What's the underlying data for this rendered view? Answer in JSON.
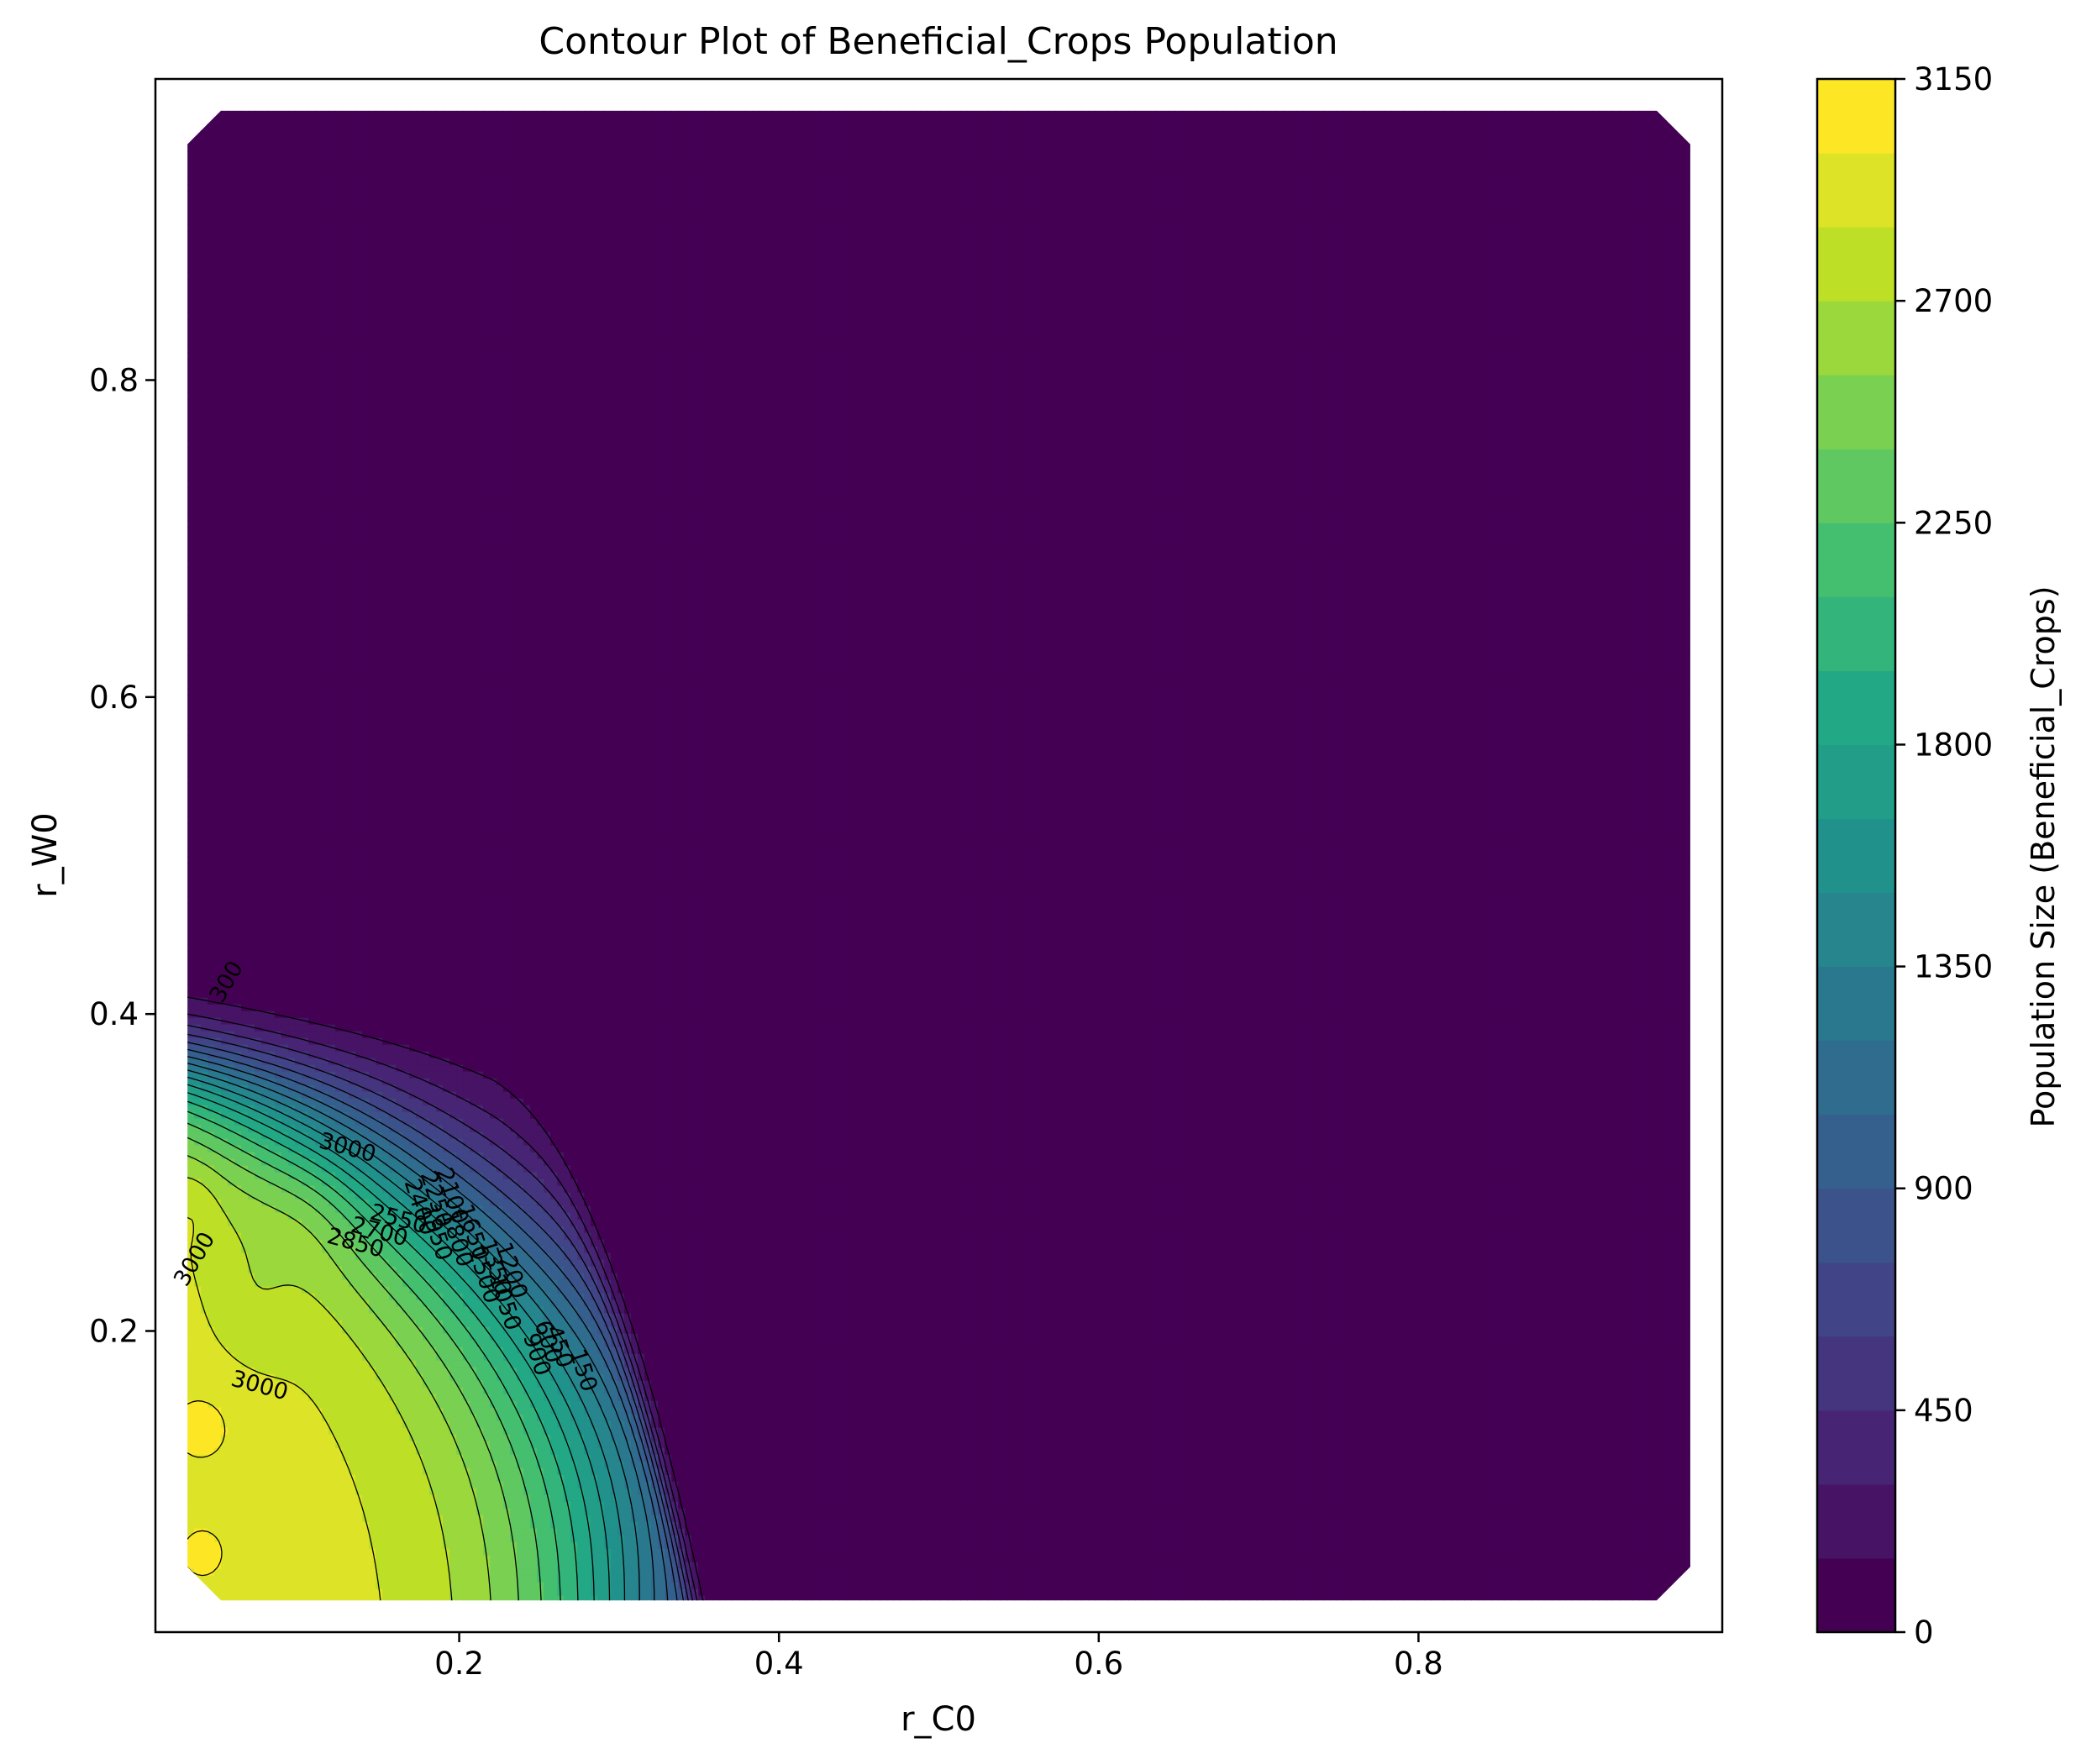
{
  "chart_data": {
    "type": "contour",
    "title": "Contour Plot of Beneficial_Crops Population",
    "xlabel": "r_C0",
    "ylabel": "r_W0",
    "xlim": [
      0.01,
      0.99
    ],
    "ylim": [
      0.01,
      0.99
    ],
    "x_ticks": [
      0.2,
      0.4,
      0.6,
      0.8
    ],
    "y_ticks": [
      0.2,
      0.4,
      0.6,
      0.8
    ],
    "x_tick_labels": [
      "0.2",
      "0.4",
      "0.6",
      "0.8"
    ],
    "y_tick_labels": [
      "0.2",
      "0.4",
      "0.6",
      "0.8"
    ],
    "data_extent": {
      "x": [
        0.03,
        0.97
      ],
      "y": [
        0.03,
        0.97
      ]
    },
    "colormap": "viridis",
    "colorbar": {
      "label": "Population Size (Beneficial_Crops)",
      "range": [
        0,
        3150
      ],
      "step": 150,
      "tick_values": [
        0,
        450,
        900,
        1350,
        1800,
        2250,
        2700,
        3150
      ],
      "tick_labels": [
        "0",
        "450",
        "900",
        "1350",
        "1800",
        "2250",
        "2700",
        "3150"
      ]
    },
    "level_values": [
      150,
      300,
      450,
      600,
      750,
      900,
      1050,
      1200,
      1350,
      1500,
      1650,
      1800,
      1950,
      2100,
      2250,
      2400,
      2550,
      2700,
      2850,
      3000
    ],
    "contour_labels": [
      {
        "text": "300",
        "x": 0.055,
        "y": 0.42
      },
      {
        "text": "3000",
        "x": 0.13,
        "y": 0.315
      },
      {
        "text": "3000",
        "x": 0.035,
        "y": 0.245
      },
      {
        "text": "3000",
        "x": 0.075,
        "y": 0.165
      },
      {
        "text": "2850",
        "x": 0.135,
        "y": 0.255
      },
      {
        "text": "2700",
        "x": 0.15,
        "y": 0.262
      },
      {
        "text": "2550",
        "x": 0.162,
        "y": 0.27
      },
      {
        "text": "2400",
        "x": 0.175,
        "y": 0.278
      },
      {
        "text": "2250",
        "x": 0.185,
        "y": 0.283
      },
      {
        "text": "2100",
        "x": 0.195,
        "y": 0.285
      },
      {
        "text": "1950",
        "x": 0.185,
        "y": 0.262
      },
      {
        "text": "1800",
        "x": 0.198,
        "y": 0.258
      },
      {
        "text": "1650",
        "x": 0.208,
        "y": 0.262
      },
      {
        "text": "1500",
        "x": 0.215,
        "y": 0.235
      },
      {
        "text": "1350",
        "x": 0.222,
        "y": 0.24
      },
      {
        "text": "1200",
        "x": 0.232,
        "y": 0.238
      },
      {
        "text": "1050",
        "x": 0.228,
        "y": 0.218
      },
      {
        "text": "900",
        "x": 0.248,
        "y": 0.185
      },
      {
        "text": "600",
        "x": 0.255,
        "y": 0.193
      },
      {
        "text": "450",
        "x": 0.262,
        "y": 0.19
      },
      {
        "text": "150",
        "x": 0.277,
        "y": 0.175
      }
    ]
  }
}
